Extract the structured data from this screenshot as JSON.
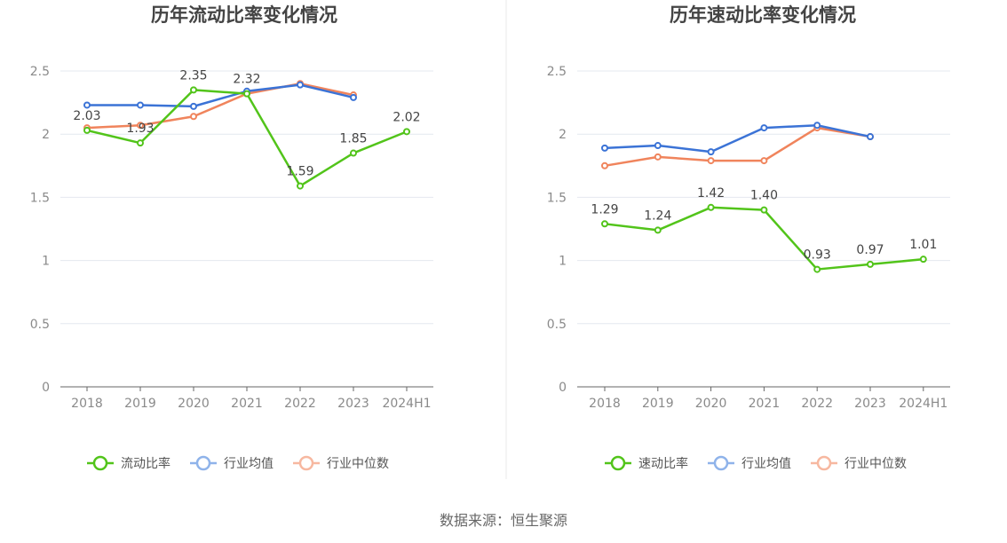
{
  "colors": {
    "primary": "#52c41a",
    "industry_avg": "#3b73d6",
    "industry_median": "#f0845c",
    "legend_avg": "#8fb3ea",
    "legend_median": "#f7b8a0",
    "grid": "#e4e8ef",
    "axis": "#666666",
    "divider": "#e8e8e8"
  },
  "chart_data": [
    {
      "type": "line",
      "title": "历年流动比率变化情况",
      "categories": [
        "2018",
        "2019",
        "2020",
        "2021",
        "2022",
        "2023",
        "2024H1"
      ],
      "ylim": [
        0,
        2.5
      ],
      "yticks": [
        "0",
        "0.5",
        "1",
        "1.5",
        "2",
        "2.5"
      ],
      "series": [
        {
          "name": "流动比率",
          "values": [
            2.03,
            1.93,
            2.35,
            2.32,
            1.59,
            1.85,
            2.02
          ],
          "labels": [
            "2.03",
            "1.93",
            "2.35",
            "2.32",
            "1.59",
            "1.85",
            "2.02"
          ]
        },
        {
          "name": "行业均值",
          "values": [
            2.23,
            2.23,
            2.22,
            2.34,
            2.39,
            2.29,
            null
          ]
        },
        {
          "name": "行业中位数",
          "values": [
            2.05,
            2.07,
            2.14,
            2.32,
            2.4,
            2.31,
            null
          ]
        }
      ]
    },
    {
      "type": "line",
      "title": "历年速动比率变化情况",
      "categories": [
        "2018",
        "2019",
        "2020",
        "2021",
        "2022",
        "2023",
        "2024H1"
      ],
      "ylim": [
        0,
        2.5
      ],
      "yticks": [
        "0",
        "0.5",
        "1",
        "1.5",
        "2",
        "2.5"
      ],
      "series": [
        {
          "name": "速动比率",
          "values": [
            1.29,
            1.24,
            1.42,
            1.4,
            0.93,
            0.97,
            1.01
          ],
          "labels": [
            "1.29",
            "1.24",
            "1.42",
            "1.40",
            "0.93",
            "0.97",
            "1.01"
          ]
        },
        {
          "name": "行业均值",
          "values": [
            1.89,
            1.91,
            1.86,
            2.05,
            2.07,
            1.98,
            null
          ]
        },
        {
          "name": "行业中位数",
          "values": [
            1.75,
            1.82,
            1.79,
            1.79,
            2.05,
            1.98,
            null
          ]
        }
      ]
    }
  ],
  "source": "数据来源：恒生聚源"
}
